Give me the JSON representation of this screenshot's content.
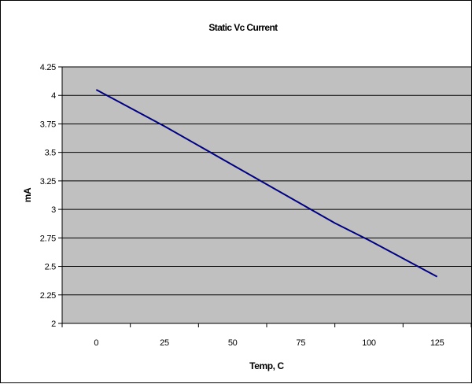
{
  "chart_data": {
    "type": "line",
    "title": "Static Vc Current",
    "xlabel": "Temp, C",
    "ylabel": "mA",
    "x_ticks": [
      "0",
      "25",
      "50",
      "75",
      "100",
      "125"
    ],
    "y_ticks": [
      "2",
      "2.25",
      "2.5",
      "2.75",
      "3",
      "3.25",
      "3.5",
      "3.75",
      "4",
      "4.25"
    ],
    "xlim": [
      -12.5,
      137.5
    ],
    "ylim": [
      2,
      4.25
    ],
    "grid": "horizontal",
    "legend": "none",
    "plot_background": "#c0c0c0",
    "series": [
      {
        "color": "#000080",
        "x": [
          0,
          25,
          50,
          75,
          87.5,
          100,
          125
        ],
        "y": [
          4.05,
          3.73,
          3.39,
          3.05,
          2.88,
          2.73,
          2.41
        ]
      }
    ]
  }
}
